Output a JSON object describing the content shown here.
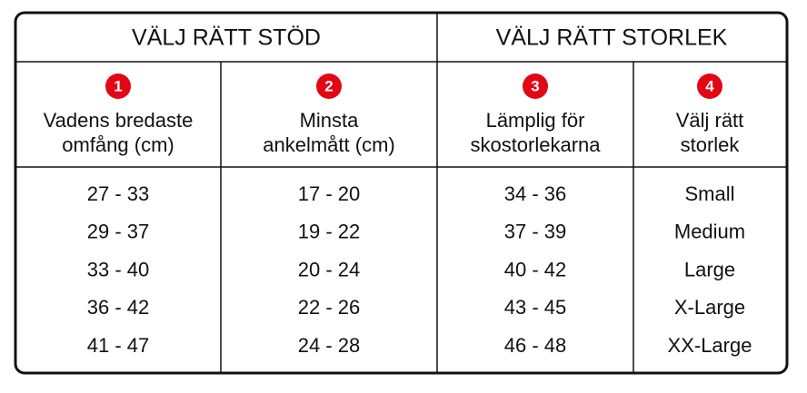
{
  "table": {
    "groups": [
      "VÄLJ RÄTT STÖD",
      "VÄLJ RÄTT STORLEK"
    ],
    "columns": [
      {
        "number": "1",
        "label": [
          "Vadens bredaste",
          "omfång (cm)"
        ]
      },
      {
        "number": "2",
        "label": [
          "Minsta",
          "ankelmått (cm)"
        ]
      },
      {
        "number": "3",
        "label": [
          "Lämplig för",
          "skostorlekarna"
        ]
      },
      {
        "number": "4",
        "label": [
          "Välj rätt",
          "storlek"
        ]
      }
    ],
    "rows": [
      [
        "27 - 33",
        "17 - 20",
        "34 - 36",
        "Small"
      ],
      [
        "29 - 37",
        "19 - 22",
        "37 - 39",
        "Medium"
      ],
      [
        "33 - 40",
        "20 - 24",
        "40 - 42",
        "Large"
      ],
      [
        "36 - 42",
        "22 - 26",
        "43 - 45",
        "X-Large"
      ],
      [
        "41 - 47",
        "24 - 28",
        "46 - 48",
        "XX-Large"
      ]
    ]
  }
}
